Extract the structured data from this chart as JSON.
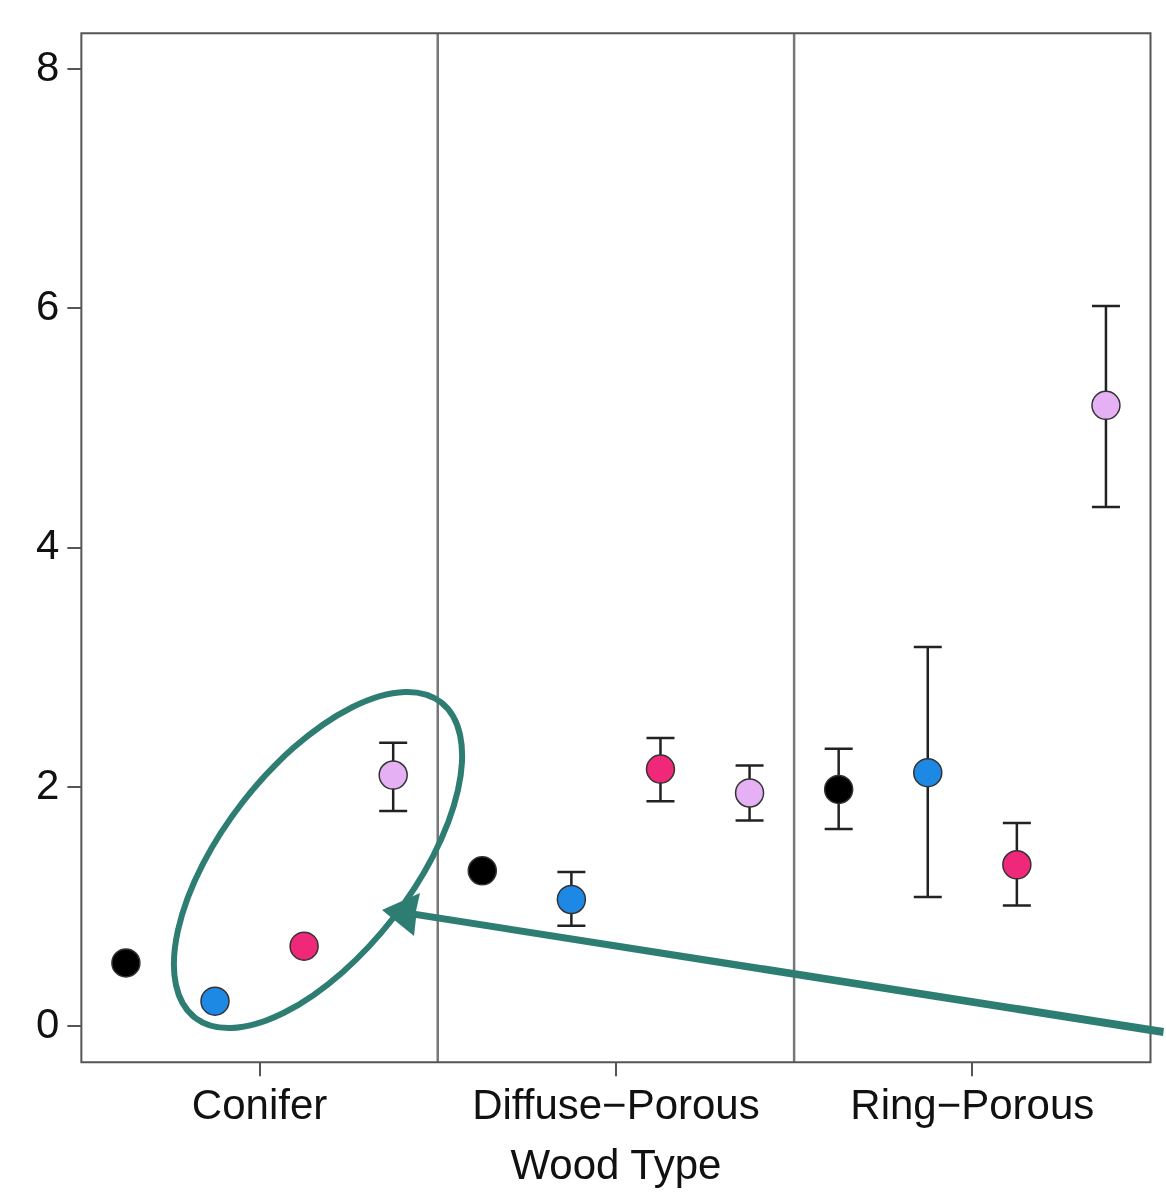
{
  "chart_data": {
    "type": "scatter",
    "xlabel": "Wood Type",
    "categories": [
      "Conifer",
      "Diffuse−Porous",
      "Ring−Porous"
    ],
    "series": [
      {
        "color": "#000000",
        "values": [
          0.53,
          1.3,
          1.98
        ],
        "errors": [
          null,
          null,
          [
            1.65,
            2.32
          ]
        ]
      },
      {
        "color": "#1e88e5",
        "values": [
          0.21,
          1.06,
          2.12
        ],
        "errors": [
          null,
          [
            0.84,
            1.29
          ],
          [
            1.08,
            3.17
          ]
        ]
      },
      {
        "color": "#f0287a",
        "values": [
          0.67,
          2.15,
          1.35
        ],
        "errors": [
          null,
          [
            1.88,
            2.41
          ],
          [
            1.01,
            1.7
          ]
        ]
      },
      {
        "color": "#e6b0f5",
        "values": [
          2.1,
          1.95,
          5.19
        ],
        "errors": [
          [
            1.8,
            2.37
          ],
          [
            1.72,
            2.18
          ],
          [
            4.34,
            6.02
          ]
        ]
      }
    ],
    "ylim": [
      -0.3,
      8.3
    ],
    "yticks": [
      0,
      2,
      4,
      6,
      8
    ],
    "grid": "x",
    "marker": "circle"
  }
}
